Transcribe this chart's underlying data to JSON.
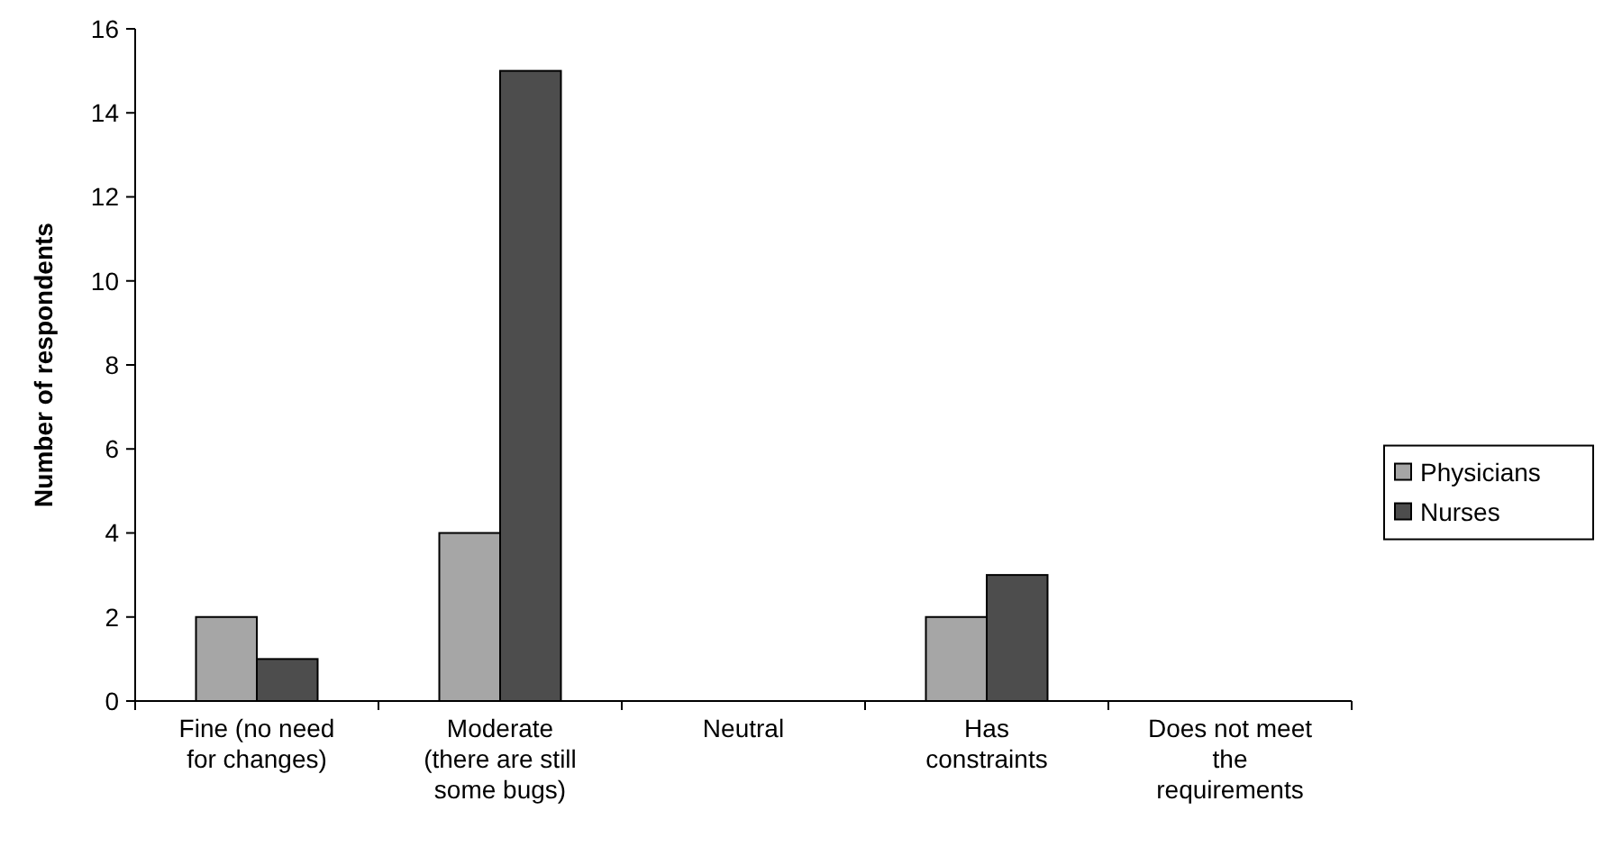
{
  "chart_data": {
    "type": "bar",
    "ylabel": "Number of respondents",
    "categories": [
      "Fine (no need\nfor changes)",
      "Moderate\n(there are still\nsome bugs)",
      "Neutral",
      "Has\nconstraints",
      "Does not meet\nthe\nrequirements"
    ],
    "series": [
      {
        "name": "Physicians",
        "color": "#a6a6a6",
        "values": [
          2,
          4,
          0,
          2,
          0
        ]
      },
      {
        "name": "Nurses",
        "color": "#4d4d4d",
        "values": [
          1,
          15,
          0,
          3,
          0
        ]
      }
    ],
    "ylim": [
      0,
      16
    ],
    "yticks": [
      0,
      2,
      4,
      6,
      8,
      10,
      12,
      14,
      16
    ],
    "legend": "right",
    "grid": false
  }
}
